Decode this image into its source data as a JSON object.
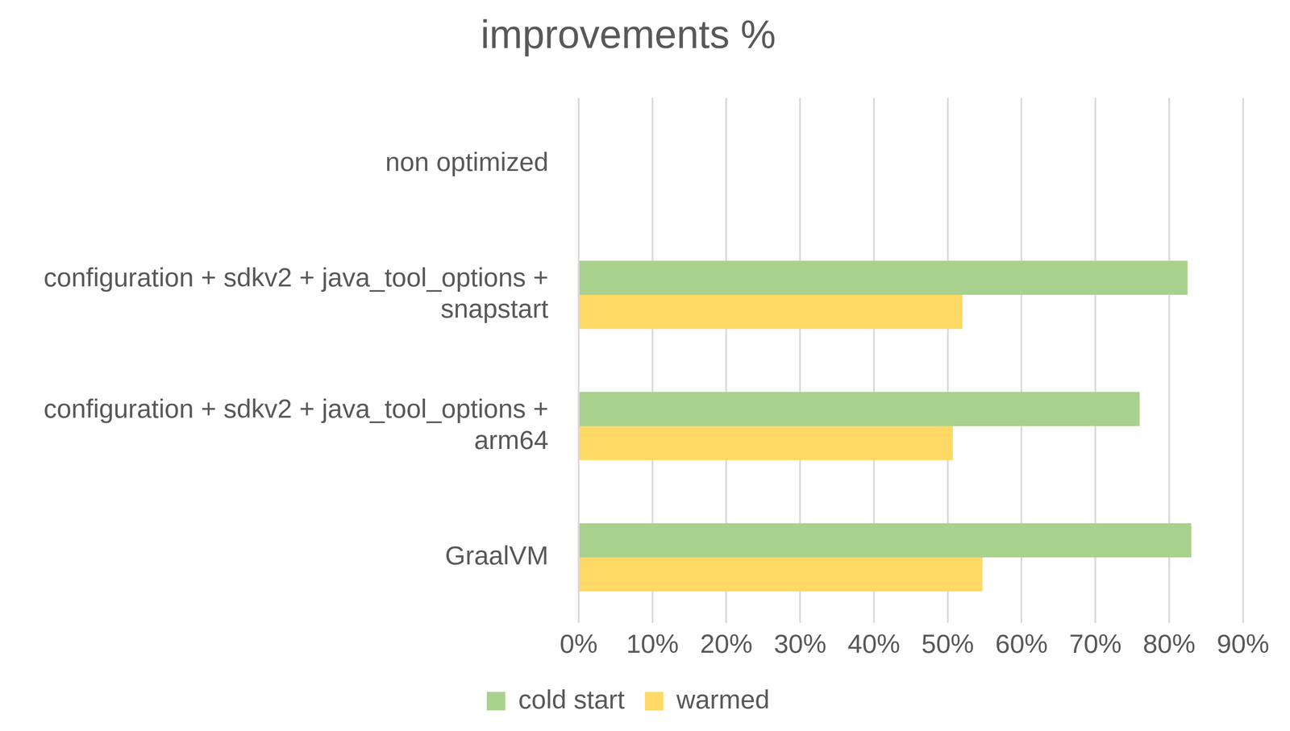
{
  "chart_data": {
    "type": "bar",
    "orientation": "horizontal",
    "title": "improvements %",
    "categories": [
      "non optimized",
      "configuration + sdkv2 + java_tool_options + snapstart",
      "configuration + sdkv2 + java_tool_options + arm64",
      "GraalVM"
    ],
    "series": [
      {
        "name": "cold start",
        "color": "#a9d18e",
        "values": [
          0,
          82.5,
          76,
          83
        ]
      },
      {
        "name": "warmed",
        "color": "#ffd966",
        "values": [
          0,
          52,
          50.7,
          54.7
        ]
      }
    ],
    "xlim": [
      0,
      90
    ],
    "xticks": [
      {
        "value": 0,
        "label": "0%"
      },
      {
        "value": 10,
        "label": "10%"
      },
      {
        "value": 20,
        "label": "20%"
      },
      {
        "value": 30,
        "label": "30%"
      },
      {
        "value": 40,
        "label": "40%"
      },
      {
        "value": 50,
        "label": "50%"
      },
      {
        "value": 60,
        "label": "60%"
      },
      {
        "value": 70,
        "label": "70%"
      },
      {
        "value": 80,
        "label": "80%"
      },
      {
        "value": 90,
        "label": "90%"
      }
    ],
    "grid": true,
    "legend": "bottom"
  }
}
